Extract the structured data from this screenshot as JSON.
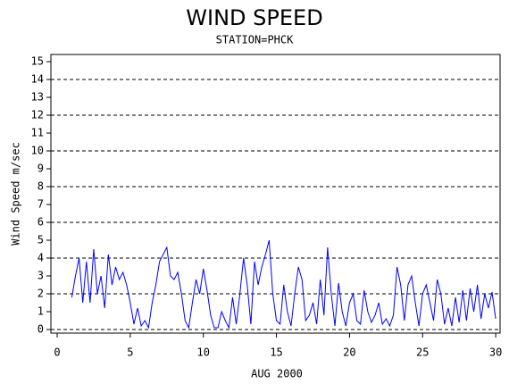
{
  "chart_data": {
    "type": "line",
    "title": "WIND SPEED",
    "subtitle": "STATION=PHCK",
    "x_label": "AUG 2000",
    "y_label": "Wind Speed m/sec",
    "xlim": [
      -0.43,
      30.3
    ],
    "xticks": [
      0,
      5,
      10,
      15,
      20,
      25,
      30
    ],
    "ylim": [
      -0.2,
      15.4
    ],
    "yticks": [
      0,
      1,
      2,
      3,
      4,
      5,
      6,
      7,
      8,
      9,
      10,
      11,
      12,
      13,
      14,
      15
    ],
    "grid_values": [
      0,
      2,
      4,
      6,
      8,
      10,
      12,
      14
    ],
    "series": [
      {
        "color": "#0000ff",
        "x": [
          1,
          1.25,
          1.5,
          1.75,
          2,
          2.25,
          2.5,
          2.75,
          3,
          3.25,
          3.5,
          3.75,
          4,
          4.25,
          4.5,
          4.75,
          5,
          5.25,
          5.5,
          5.75,
          6,
          6.25,
          6.5,
          6.75,
          7,
          7.25,
          7.5,
          7.75,
          8,
          8.25,
          8.5,
          8.75,
          9,
          9.25,
          9.5,
          9.75,
          10,
          10.25,
          10.5,
          10.75,
          11,
          11.25,
          11.5,
          11.75,
          12,
          12.25,
          12.5,
          12.75,
          13,
          13.25,
          13.5,
          13.75,
          14,
          14.25,
          14.5,
          14.75,
          15,
          15.25,
          15.5,
          15.75,
          16,
          16.25,
          16.5,
          16.75,
          17,
          17.25,
          17.5,
          17.75,
          18,
          18.25,
          18.5,
          18.75,
          19,
          19.25,
          19.5,
          19.75,
          20,
          20.25,
          20.5,
          20.75,
          21,
          21.25,
          21.5,
          21.75,
          22,
          22.25,
          22.5,
          22.75,
          23,
          23.25,
          23.5,
          23.75,
          24,
          24.25,
          24.5,
          24.75,
          25,
          25.25,
          25.5,
          25.75,
          26,
          26.25,
          26.5,
          26.75,
          27,
          27.25,
          27.5,
          27.75,
          28,
          28.25,
          28.5,
          28.75,
          29,
          29.25,
          29.5,
          29.75,
          30
        ],
        "values": [
          1.8,
          3.0,
          4.0,
          1.5,
          3.8,
          1.5,
          4.5,
          2.0,
          3.0,
          1.2,
          4.2,
          2.5,
          3.5,
          2.8,
          3.2,
          2.5,
          1.5,
          0.3,
          1.2,
          0.2,
          0.5,
          0.1,
          1.5,
          2.5,
          3.8,
          4.2,
          4.6,
          3.0,
          2.8,
          3.2,
          2.0,
          0.5,
          0.1,
          1.5,
          2.8,
          2.0,
          3.4,
          2.2,
          0.8,
          0.1,
          0.1,
          1.0,
          0.5,
          0.1,
          1.8,
          0.3,
          2.0,
          4.0,
          2.5,
          0.3,
          3.8,
          2.5,
          3.5,
          4.2,
          5.0,
          2.0,
          0.5,
          0.3,
          2.5,
          1.0,
          0.2,
          2.0,
          3.5,
          2.8,
          0.5,
          0.8,
          1.5,
          0.3,
          2.8,
          0.8,
          4.6,
          2.0,
          0.2,
          2.6,
          1.0,
          0.2,
          1.5,
          2.0,
          0.5,
          0.3,
          2.2,
          1.0,
          0.4,
          0.8,
          1.5,
          0.3,
          0.6,
          0.2,
          0.8,
          3.5,
          2.5,
          0.5,
          2.5,
          3.0,
          1.5,
          0.2,
          2.0,
          2.5,
          1.5,
          0.5,
          2.8,
          2.0,
          0.3,
          1.2,
          0.2,
          1.8,
          0.4,
          2.2,
          0.5,
          2.3,
          1.0,
          2.5,
          0.6,
          2.0,
          1.2,
          2.1,
          0.6
        ]
      }
    ]
  }
}
